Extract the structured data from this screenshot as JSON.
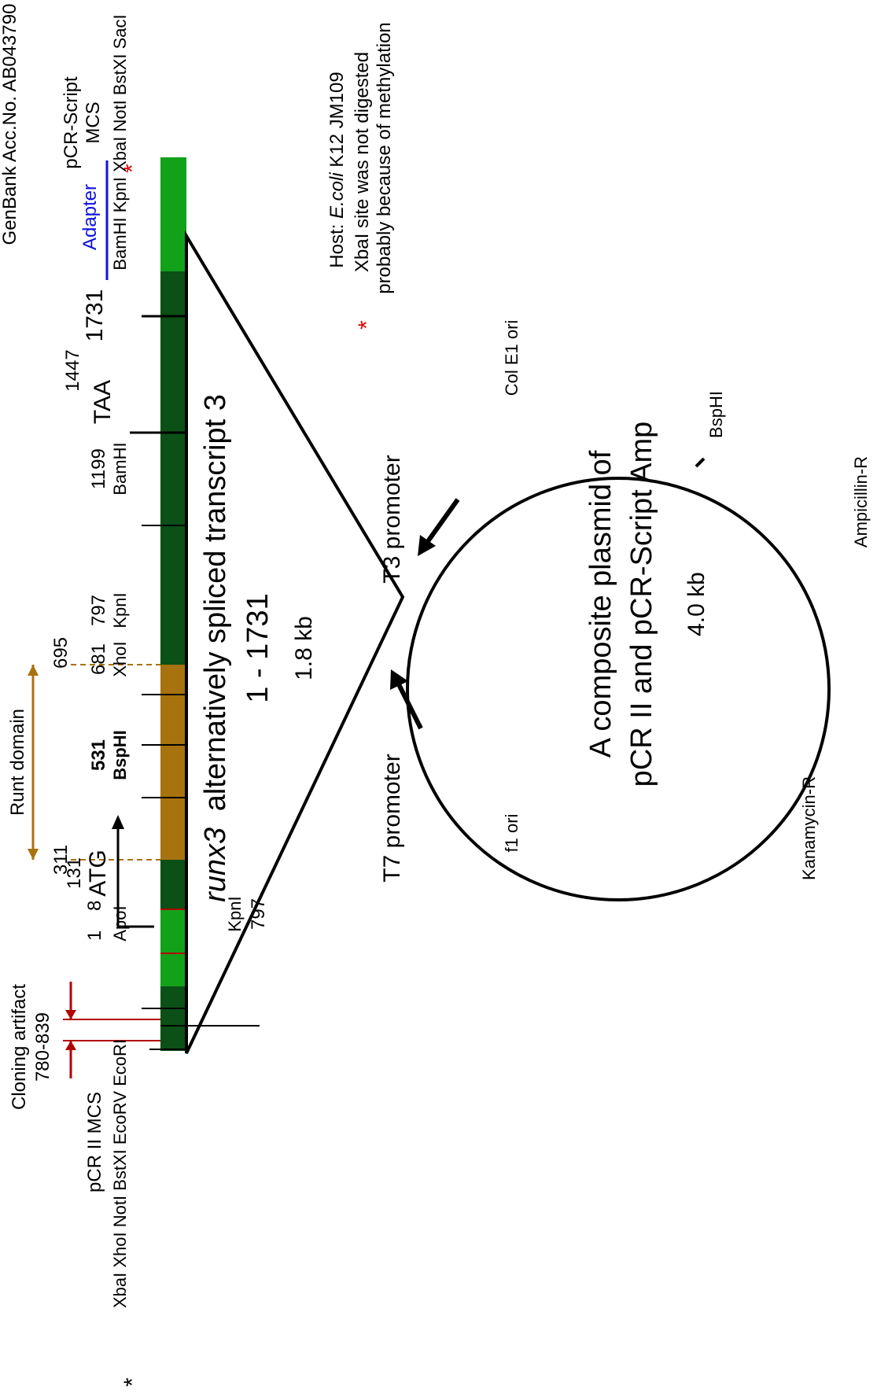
{
  "genbank": "GenBank Acc.No. AB043790",
  "pcr_script_mcs": {
    "line1": "pCR-Script",
    "line2": "MCS",
    "sites": "BamHI KpnI XbaI NotI BstXI SacI"
  },
  "adapter": "Adapter",
  "pcr2_mcs": {
    "title": "pCR II  MCS",
    "sites": "XbaI XhoI NotI BstXI EcoRV EcoRI"
  },
  "cloning_artifact": {
    "line1": "Cloning artifact",
    "line2": "780-839"
  },
  "runt_domain": {
    "label": "Runt domain",
    "start": "311",
    "end": "695"
  },
  "features": {
    "pos1": "1",
    "pos8": "8",
    "apoi": "ApoI",
    "pos131": "131",
    "atg": "ATG",
    "bsphi": "BspHI",
    "pos531": "531",
    "xhoi": "XhoI",
    "pos681": "681",
    "kpni": "KpnI",
    "pos797": "797",
    "bamhi": "BamHI",
    "pos1199": "1199",
    "taa": "TAA",
    "pos1447": "1447",
    "pos1731": "1731",
    "kpni_low": "KpnI",
    "pos797_low": "797"
  },
  "insert": {
    "gene": "runx3",
    "title_rest": "alternatively spliced transcript 3",
    "range": "1 - 1731",
    "size": "1.8 kb"
  },
  "host": {
    "prefix": "Host: ",
    "species": "E.coli",
    "strain": " K12 JM109"
  },
  "note": {
    "star": "*",
    "line1": "XbaI site was not digested",
    "line2": "probably because of methylation"
  },
  "plasmid": {
    "line1": "A composite plasmid of",
    "line2": "pCR II and pCR-Script Amp",
    "size": "4.0 kb",
    "t3": "T3 promoter",
    "t7": "T7 promoter",
    "col_e1": "Col E1 ori",
    "f1": "f1 ori",
    "bsphi": "BspHI",
    "amp": "Ampicillin-R",
    "kan": "Kanamycin-R"
  },
  "colors": {
    "dark_green": "#0b5016",
    "light_green": "#12a21a",
    "runt": "#a8720e",
    "red": "#b20000",
    "adapter_blue": "#1010e0",
    "star_red": "#e00000"
  }
}
